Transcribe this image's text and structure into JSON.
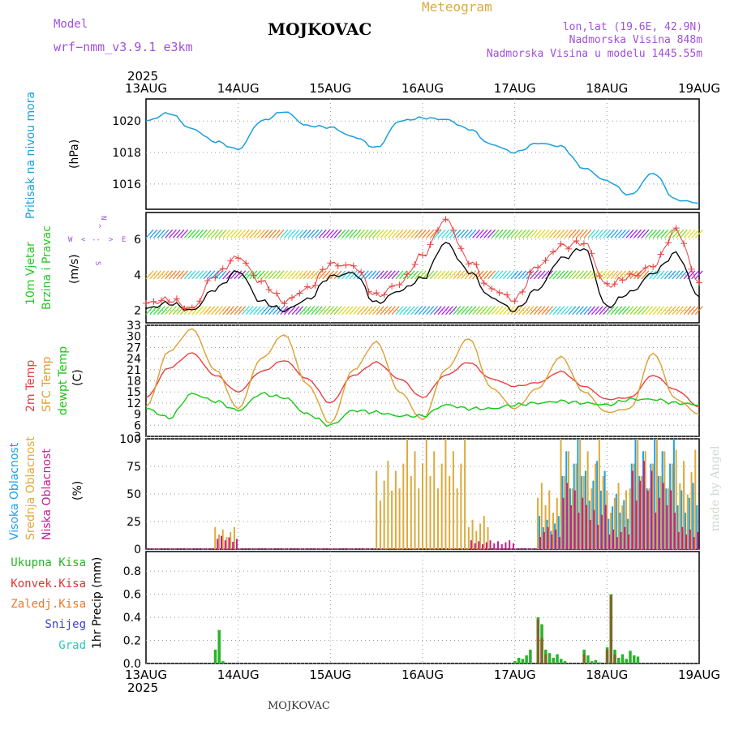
{
  "header": {
    "model_label": "Model",
    "model_name": "wrf−nmm_v3.9.1  e3km",
    "station": "MOJKOVAC",
    "meteogram": "Meteogram",
    "lonlat": "lon,lat (19.6E, 42.9N)",
    "elevation": "Nadmorska Visina 848m",
    "model_elevation": "Nadmorska Visina u modelu 1445.55m",
    "year_top": "2025",
    "year_bottom": "2025",
    "footer_station": "MOJKOVAC",
    "credit": "made by Angel"
  },
  "colors": {
    "pressure": "#1aa0dc",
    "temp2m": "#e84040",
    "sfc": "#dca032",
    "dewpt": "#14c814",
    "violet": "#a050dc",
    "high_cloud": "#1ea0e6",
    "mid_cloud": "#dcaa3c",
    "low_cloud": "#c81e8c",
    "total_rain": "#28b428",
    "conv_rain": "#e13232",
    "freezing": "#e6782d",
    "snow": "#3c3cdc",
    "graupel": "#28c8b4"
  },
  "chart_data": [
    {
      "type": "line",
      "title": "Pritisak na nivou mora",
      "ylabel": "(hPa)",
      "ylim": [
        1014.4,
        1021.4
      ],
      "yticks": [
        1016,
        1018,
        1020
      ],
      "x_dates": [
        "13AUG",
        "14AUG",
        "15AUG",
        "16AUG",
        "17AUG",
        "18AUG",
        "19AUG"
      ],
      "x_hours": [
        0,
        6,
        12,
        18,
        24,
        30,
        36,
        42,
        48,
        54,
        60,
        66,
        72,
        78,
        84,
        90,
        96,
        102,
        108,
        114,
        120,
        126,
        132,
        138,
        144
      ],
      "values": [
        1020.0,
        1020.5,
        1019.5,
        1018.7,
        1018.2,
        1020.0,
        1020.6,
        1019.7,
        1019.6,
        1019.0,
        1018.3,
        1020.0,
        1020.2,
        1020.1,
        1019.5,
        1018.5,
        1018.0,
        1018.6,
        1018.4,
        1017.0,
        1016.2,
        1015.3,
        1016.7,
        1015.0,
        1014.8
      ]
    },
    {
      "type": "line",
      "title": "10m Vjetar Brzina i Pravac",
      "ylabel": "(m/s)",
      "yticks": [
        2,
        4,
        6
      ],
      "ylim": [
        1.3,
        7.5
      ],
      "compass": [
        "N",
        "W",
        "E",
        "S"
      ],
      "compass_arrows": [
        "^",
        "<",
        "--",
        ">"
      ],
      "band_levels": [
        2,
        4,
        6.3
      ],
      "series": [
        {
          "name": "speed_black",
          "values": [
            2.1,
            2.4,
            2.0,
            3.2,
            4.2,
            2.5,
            2.0,
            2.6,
            3.9,
            4.1,
            2.4,
            3.1,
            3.8,
            5.8,
            4.2,
            2.7,
            2.0,
            3.2,
            4.9,
            5.5,
            2.2,
            3.0,
            4.1,
            5.2,
            2.8
          ]
        },
        {
          "name": "speed_red_plus",
          "values": [
            2.4,
            2.6,
            2.1,
            4.0,
            5.0,
            3.6,
            2.5,
            3.2,
            4.6,
            4.5,
            2.8,
            3.5,
            5.1,
            7.1,
            4.8,
            3.2,
            2.6,
            4.5,
            5.6,
            5.8,
            3.4,
            3.9,
            4.5,
            6.5,
            3.6
          ]
        }
      ]
    },
    {
      "type": "line",
      "title": "2m Temp / SFC Temp / dewpt Temp",
      "ylabel": "(C)",
      "ylim": [
        3,
        33
      ],
      "yticks": [
        3,
        6,
        9,
        12,
        15,
        18,
        21,
        24,
        27,
        30,
        33
      ],
      "legend": [
        "2m Temp",
        "SFC Temp",
        "dewpt Temp"
      ],
      "series": [
        {
          "name": "2m Temp",
          "values": [
            13.5,
            21.5,
            25.5,
            19.5,
            15.0,
            20.5,
            23.5,
            18.5,
            12.0,
            19.5,
            23.0,
            18.5,
            13.5,
            19.5,
            23.0,
            18.5,
            16.5,
            17.5,
            20.5,
            16.5,
            13.0,
            13.5,
            19.5,
            15.5,
            11.0
          ]
        },
        {
          "name": "SFC Temp",
          "values": [
            11.0,
            26.0,
            32.0,
            21.0,
            10.5,
            24.0,
            30.5,
            17.0,
            6.5,
            21.0,
            28.5,
            15.0,
            7.5,
            21.0,
            29.5,
            16.0,
            10.5,
            16.0,
            24.5,
            15.0,
            9.5,
            10.5,
            25.5,
            13.0,
            9.0
          ]
        },
        {
          "name": "dewpt Temp",
          "values": [
            10.5,
            8.0,
            14.5,
            12.5,
            10.0,
            14.5,
            13.5,
            9.0,
            6.0,
            10.0,
            9.5,
            8.5,
            8.5,
            11.5,
            10.5,
            10.5,
            11.5,
            12.0,
            12.5,
            12.0,
            11.5,
            13.0,
            13.0,
            12.0,
            11.5
          ]
        }
      ]
    },
    {
      "type": "bar",
      "title": "Visoka / Srednja / Niska Oblacnost",
      "ylabel": "(%)",
      "ylim": [
        0,
        100
      ],
      "yticks": [
        0,
        25,
        50,
        75,
        100
      ],
      "legend": [
        "Visoka Oblacnost",
        "Srednja Oblacnost",
        "Niska Oblacnost"
      ],
      "series": [
        {
          "name": "Visoka Oblacnost",
          "values": [
            0,
            0,
            0,
            0,
            0,
            0,
            0,
            0,
            0,
            0,
            0,
            0,
            0,
            0,
            0,
            0,
            0,
            30,
            100,
            80,
            50,
            100,
            100,
            60,
            0
          ]
        },
        {
          "name": "Srednja Oblacnost",
          "values": [
            0,
            0,
            0,
            20,
            0,
            0,
            0,
            0,
            0,
            0,
            80,
            100,
            100,
            100,
            30,
            0,
            0,
            60,
            100,
            100,
            60,
            100,
            100,
            90,
            0
          ]
        },
        {
          "name": "Niska Oblacnost",
          "values": [
            0,
            0,
            0,
            12,
            0,
            0,
            0,
            0,
            0,
            0,
            0,
            0,
            0,
            0,
            8,
            8,
            0,
            20,
            60,
            40,
            20,
            80,
            60,
            20,
            0
          ]
        }
      ]
    },
    {
      "type": "bar",
      "title": "1hr Precip",
      "ylabel": "1hr Precip (mm)",
      "ylim": [
        0,
        0.97
      ],
      "yticks": [
        0.0,
        0.2,
        0.4,
        0.6,
        0.8
      ],
      "legend": [
        "Ukupna Kisa",
        "Konvek.Kisa",
        "Zaledj.Kisa",
        "Snijeg",
        "Grad"
      ],
      "series": [
        {
          "name": "Ukupna Kisa",
          "hours": [
            18,
            19,
            20,
            96,
            97,
            98,
            99,
            100,
            102,
            103,
            104,
            105,
            106,
            107,
            108,
            109,
            114,
            115,
            116,
            117,
            118,
            120,
            121,
            122,
            123,
            124,
            125,
            126,
            127,
            128
          ],
          "values": [
            0.12,
            0.29,
            0.02,
            0.02,
            0.05,
            0.04,
            0.07,
            0.12,
            0.4,
            0.34,
            0.12,
            0.09,
            0.05,
            0.08,
            0.04,
            0.02,
            0.12,
            0.07,
            0.02,
            0.03,
            0.01,
            0.14,
            0.6,
            0.12,
            0.05,
            0.08,
            0.04,
            0.11,
            0.07,
            0.06
          ]
        },
        {
          "name": "Konvek.Kisa",
          "hours": [
            102,
            103,
            104,
            114,
            120,
            121,
            122
          ],
          "values": [
            0.38,
            0.22,
            0.08,
            0.08,
            0.12,
            0.59,
            0.08
          ]
        }
      ]
    }
  ]
}
